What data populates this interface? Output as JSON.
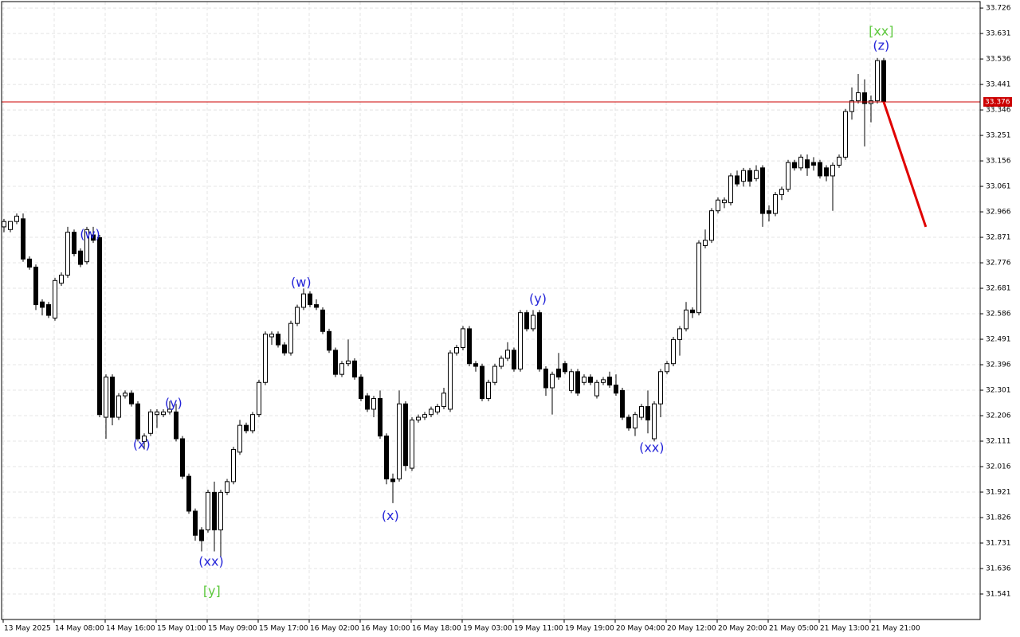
{
  "chart_data": {
    "type": "candlestick",
    "ylim": [
      31.446,
      33.75
    ],
    "yticks": [
      31.541,
      31.636,
      31.731,
      31.826,
      31.921,
      32.016,
      32.111,
      32.206,
      32.301,
      32.396,
      32.491,
      32.586,
      32.681,
      32.776,
      32.871,
      32.966,
      33.061,
      33.156,
      33.251,
      33.346,
      33.441,
      33.536,
      33.631,
      33.726
    ],
    "grid": true,
    "up_color": "#ffffff",
    "down_color": "#000000",
    "categories": [
      "13 May 2025",
      null,
      null,
      null,
      null,
      null,
      null,
      null,
      "14 May 08:00",
      null,
      null,
      null,
      null,
      null,
      null,
      null,
      "14 May 16:00",
      null,
      null,
      null,
      null,
      null,
      null,
      null,
      "15 May 01:00",
      null,
      null,
      null,
      null,
      null,
      null,
      null,
      "15 May 09:00",
      null,
      null,
      null,
      null,
      null,
      null,
      null,
      "15 May 17:00",
      null,
      null,
      null,
      null,
      null,
      null,
      null,
      "16 May 02:00",
      null,
      null,
      null,
      null,
      null,
      null,
      null,
      "16 May 10:00",
      null,
      null,
      null,
      null,
      null,
      null,
      null,
      "16 May 18:00",
      null,
      null,
      null,
      null,
      null,
      null,
      null,
      "19 May 03:00",
      null,
      null,
      null,
      null,
      null,
      null,
      null,
      "19 May 11:00",
      null,
      null,
      null,
      null,
      null,
      null,
      null,
      "19 May 19:00",
      null,
      null,
      null,
      null,
      null,
      null,
      null,
      "20 May 04:00",
      null,
      null,
      null,
      null,
      null,
      null,
      null,
      "20 May 12:00",
      null,
      null,
      null,
      null,
      null,
      null,
      null,
      "20 May 20:00",
      null,
      null,
      null,
      null,
      null,
      null,
      null,
      "21 May 05:00",
      null,
      null,
      null,
      null,
      null,
      null,
      null,
      "21 May 13:00",
      null,
      null,
      null,
      null,
      null,
      null,
      null,
      "21 May 21:00",
      null,
      null
    ],
    "ohlc": [
      [
        32.91,
        32.94,
        32.89,
        32.93
      ],
      [
        32.9,
        32.93,
        32.89,
        32.93
      ],
      [
        32.93,
        32.96,
        32.92,
        32.95
      ],
      [
        32.94,
        32.96,
        32.78,
        32.79
      ],
      [
        32.79,
        32.8,
        32.75,
        32.76
      ],
      [
        32.76,
        32.77,
        32.6,
        32.62
      ],
      [
        32.63,
        32.64,
        32.58,
        32.61
      ],
      [
        32.62,
        32.63,
        32.57,
        32.58
      ],
      [
        32.57,
        32.72,
        32.56,
        32.71
      ],
      [
        32.7,
        32.74,
        32.69,
        32.73
      ],
      [
        32.73,
        32.91,
        32.72,
        32.89
      ],
      [
        32.89,
        32.9,
        32.8,
        32.81
      ],
      [
        32.82,
        32.83,
        32.76,
        32.77
      ],
      [
        32.78,
        32.91,
        32.77,
        32.9
      ],
      [
        32.88,
        32.91,
        32.85,
        32.86
      ],
      [
        32.87,
        32.88,
        32.2,
        32.21
      ],
      [
        32.2,
        32.36,
        32.12,
        32.35
      ],
      [
        32.35,
        32.36,
        32.17,
        32.2
      ],
      [
        32.2,
        32.29,
        32.19,
        32.28
      ],
      [
        32.28,
        32.3,
        32.27,
        32.29
      ],
      [
        32.29,
        32.3,
        32.24,
        32.25
      ],
      [
        32.25,
        32.26,
        32.11,
        32.12
      ],
      [
        32.11,
        32.14,
        32.08,
        32.13
      ],
      [
        32.14,
        32.23,
        32.13,
        32.22
      ],
      [
        32.21,
        32.23,
        32.16,
        32.22
      ],
      [
        32.21,
        32.23,
        32.2,
        32.22
      ],
      [
        32.22,
        32.26,
        32.21,
        32.23
      ],
      [
        32.22,
        32.25,
        32.11,
        32.12
      ],
      [
        32.12,
        32.13,
        31.97,
        31.98
      ],
      [
        31.98,
        31.99,
        31.84,
        31.85
      ],
      [
        31.85,
        31.86,
        31.74,
        31.76
      ],
      [
        31.78,
        31.79,
        31.7,
        31.74
      ],
      [
        31.78,
        31.93,
        31.77,
        31.92
      ],
      [
        31.92,
        31.96,
        31.7,
        31.78
      ],
      [
        31.78,
        31.93,
        31.68,
        31.92
      ],
      [
        31.92,
        31.97,
        31.91,
        31.96
      ],
      [
        31.96,
        32.09,
        31.95,
        32.08
      ],
      [
        32.07,
        32.19,
        32.06,
        32.17
      ],
      [
        32.17,
        32.18,
        32.14,
        32.15
      ],
      [
        32.15,
        32.22,
        32.14,
        32.21
      ],
      [
        32.21,
        32.34,
        32.2,
        32.33
      ],
      [
        32.33,
        32.52,
        32.32,
        32.51
      ],
      [
        32.5,
        32.52,
        32.47,
        32.51
      ],
      [
        32.51,
        32.52,
        32.46,
        32.47
      ],
      [
        32.47,
        32.48,
        32.43,
        32.44
      ],
      [
        32.44,
        32.56,
        32.43,
        32.55
      ],
      [
        32.55,
        32.62,
        32.54,
        32.61
      ],
      [
        32.61,
        32.68,
        32.6,
        32.66
      ],
      [
        32.66,
        32.67,
        32.61,
        32.62
      ],
      [
        32.62,
        32.64,
        32.6,
        32.61
      ],
      [
        32.6,
        32.61,
        32.51,
        32.52
      ],
      [
        32.52,
        32.53,
        32.44,
        32.45
      ],
      [
        32.45,
        32.46,
        32.35,
        32.36
      ],
      [
        32.36,
        32.41,
        32.35,
        32.4
      ],
      [
        32.4,
        32.49,
        32.39,
        32.41
      ],
      [
        32.41,
        32.42,
        32.34,
        32.35
      ],
      [
        32.35,
        32.36,
        32.26,
        32.27
      ],
      [
        32.28,
        32.29,
        32.22,
        32.23
      ],
      [
        32.23,
        32.28,
        32.2,
        32.27
      ],
      [
        32.27,
        32.3,
        32.12,
        32.13
      ],
      [
        32.13,
        32.14,
        31.95,
        31.97
      ],
      [
        31.97,
        31.99,
        31.88,
        31.96
      ],
      [
        31.97,
        32.3,
        31.96,
        32.25
      ],
      [
        32.25,
        32.26,
        32.0,
        32.02
      ],
      [
        32.01,
        32.2,
        32.0,
        32.19
      ],
      [
        32.19,
        32.21,
        32.18,
        32.2
      ],
      [
        32.2,
        32.22,
        32.19,
        32.21
      ],
      [
        32.21,
        32.24,
        32.2,
        32.23
      ],
      [
        32.22,
        32.25,
        32.21,
        32.24
      ],
      [
        32.24,
        32.31,
        32.23,
        32.29
      ],
      [
        32.23,
        32.45,
        32.22,
        32.44
      ],
      [
        32.44,
        32.47,
        32.43,
        32.46
      ],
      [
        32.46,
        32.54,
        32.45,
        32.53
      ],
      [
        32.53,
        32.54,
        32.39,
        32.4
      ],
      [
        32.4,
        32.41,
        32.37,
        32.39
      ],
      [
        32.39,
        32.4,
        32.26,
        32.27
      ],
      [
        32.27,
        32.34,
        32.26,
        32.33
      ],
      [
        32.33,
        32.4,
        32.32,
        32.39
      ],
      [
        32.39,
        32.43,
        32.38,
        32.42
      ],
      [
        32.42,
        32.48,
        32.41,
        32.45
      ],
      [
        32.45,
        32.46,
        32.37,
        32.38
      ],
      [
        32.38,
        32.6,
        32.37,
        32.59
      ],
      [
        32.59,
        32.6,
        32.52,
        32.53
      ],
      [
        32.53,
        32.6,
        32.52,
        32.58
      ],
      [
        32.59,
        32.6,
        32.37,
        32.38
      ],
      [
        32.38,
        32.39,
        32.28,
        32.31
      ],
      [
        32.31,
        32.37,
        32.21,
        32.36
      ],
      [
        32.38,
        32.44,
        32.34,
        32.35
      ],
      [
        32.4,
        32.41,
        32.36,
        32.37
      ],
      [
        32.3,
        32.38,
        32.29,
        32.37
      ],
      [
        32.37,
        32.38,
        32.28,
        32.29
      ],
      [
        32.33,
        32.36,
        32.32,
        32.35
      ],
      [
        32.35,
        32.36,
        32.32,
        32.33
      ],
      [
        32.28,
        32.34,
        32.27,
        32.33
      ],
      [
        32.33,
        32.35,
        32.32,
        32.34
      ],
      [
        32.35,
        32.37,
        32.31,
        32.32
      ],
      [
        32.32,
        32.36,
        32.28,
        32.29
      ],
      [
        32.3,
        32.31,
        32.19,
        32.2
      ],
      [
        32.2,
        32.21,
        32.15,
        32.16
      ],
      [
        32.16,
        32.22,
        32.13,
        32.21
      ],
      [
        32.2,
        32.25,
        32.19,
        32.24
      ],
      [
        32.24,
        32.3,
        32.14,
        32.19
      ],
      [
        32.12,
        32.26,
        32.11,
        32.25
      ],
      [
        32.25,
        32.38,
        32.2,
        32.37
      ],
      [
        32.37,
        32.41,
        32.36,
        32.4
      ],
      [
        32.4,
        32.5,
        32.39,
        32.49
      ],
      [
        32.49,
        32.54,
        32.43,
        32.53
      ],
      [
        32.53,
        32.63,
        32.52,
        32.6
      ],
      [
        32.6,
        32.61,
        32.57,
        32.59
      ],
      [
        32.59,
        32.86,
        32.58,
        32.85
      ],
      [
        32.84,
        32.9,
        32.83,
        32.86
      ],
      [
        32.86,
        32.98,
        32.85,
        32.97
      ],
      [
        32.97,
        33.02,
        32.96,
        33.01
      ],
      [
        33.0,
        33.02,
        32.98,
        33.01
      ],
      [
        33.0,
        33.11,
        32.99,
        33.1
      ],
      [
        33.1,
        33.12,
        33.06,
        33.07
      ],
      [
        33.08,
        33.13,
        33.06,
        33.12
      ],
      [
        33.12,
        33.13,
        33.06,
        33.08
      ],
      [
        33.09,
        33.14,
        33.08,
        33.12
      ],
      [
        33.13,
        33.14,
        32.91,
        32.96
      ],
      [
        32.97,
        32.99,
        32.93,
        32.96
      ],
      [
        32.96,
        33.04,
        32.95,
        33.03
      ],
      [
        33.03,
        33.06,
        33.01,
        33.05
      ],
      [
        33.05,
        33.16,
        33.04,
        33.15
      ],
      [
        33.15,
        33.16,
        33.12,
        33.13
      ],
      [
        33.13,
        33.18,
        33.12,
        33.17
      ],
      [
        33.16,
        33.18,
        33.1,
        33.13
      ],
      [
        33.15,
        33.17,
        33.12,
        33.14
      ],
      [
        33.15,
        33.16,
        33.09,
        33.1
      ],
      [
        33.13,
        33.14,
        33.08,
        33.1
      ],
      [
        33.1,
        33.15,
        32.97,
        33.14
      ],
      [
        33.14,
        33.18,
        33.13,
        33.17
      ],
      [
        33.17,
        33.35,
        33.16,
        33.34
      ],
      [
        33.34,
        33.43,
        33.31,
        33.38
      ],
      [
        33.38,
        33.48,
        33.37,
        33.41
      ],
      [
        33.41,
        33.46,
        33.21,
        33.37
      ],
      [
        33.37,
        33.4,
        33.3,
        33.38
      ],
      [
        33.38,
        33.54,
        33.37,
        33.53
      ],
      [
        33.53,
        33.54,
        33.37,
        33.376
      ]
    ],
    "current_price": {
      "value": 33.376,
      "color": "#cc0000"
    },
    "forecast": {
      "color": "#e00000",
      "x": [
        138,
        144.6
      ],
      "values": [
        33.376,
        32.91
      ]
    },
    "annotations": [
      {
        "text": "(w)",
        "index": 13.5,
        "price": 32.88,
        "color": "#2424d8"
      },
      {
        "text": "(x)",
        "index": 21.6,
        "price": 32.096,
        "color": "#2424d8"
      },
      {
        "text": "(y)",
        "index": 26.6,
        "price": 32.25,
        "color": "#2424d8"
      },
      {
        "text": "(xx)",
        "index": 32.5,
        "price": 31.66,
        "color": "#2424d8"
      },
      {
        "text": "[y]",
        "index": 32.6,
        "price": 31.55,
        "color": "#5cc83c"
      },
      {
        "text": "(w)",
        "index": 46.6,
        "price": 32.7,
        "color": "#2424d8"
      },
      {
        "text": "(x)",
        "index": 60.6,
        "price": 31.83,
        "color": "#2424d8"
      },
      {
        "text": "(y)",
        "index": 83.75,
        "price": 32.64,
        "color": "#2424d8"
      },
      {
        "text": "(xx)",
        "index": 101.6,
        "price": 32.085,
        "color": "#2424d8"
      },
      {
        "text": "[xx]",
        "index": 137.6,
        "price": 33.637,
        "color": "#5cc83c"
      },
      {
        "text": "(z)",
        "index": 137.6,
        "price": 33.583,
        "color": "#2424d8"
      }
    ]
  }
}
